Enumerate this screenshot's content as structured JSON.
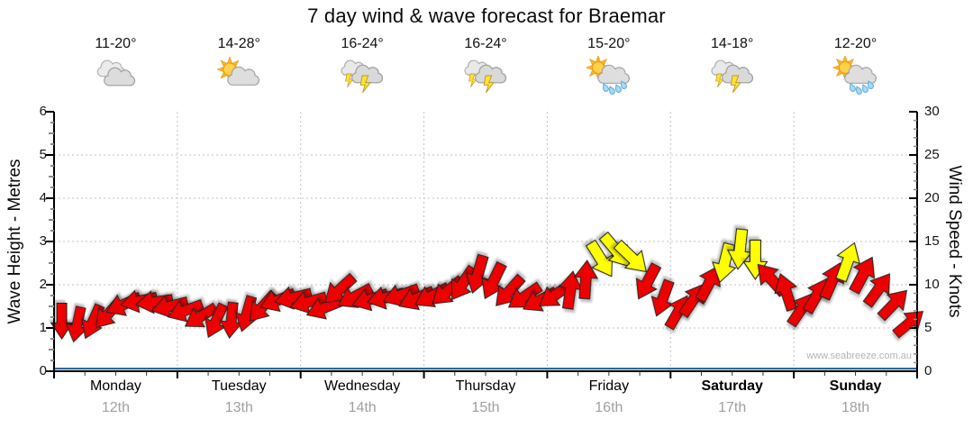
{
  "title": "7 day wind & wave forecast for Braemar",
  "watermark": "www.seabreeze.com.au",
  "colors": {
    "arrow_red": "#ee0000",
    "arrow_yellow": "#ffff00",
    "arrow_outline": "#222222",
    "wave_line": "#1d5e8f",
    "grid": "#c3c3c3",
    "axis": "#000000",
    "minor_tick": "#8a8a8a",
    "date_text": "#a0a0a0",
    "watermark_text": "#b4b4b4"
  },
  "day_headers": [
    {
      "temp": "11-20°",
      "icon": "cloudy"
    },
    {
      "temp": "14-28°",
      "icon": "partly-cloudy"
    },
    {
      "temp": "16-24°",
      "icon": "thunderstorm"
    },
    {
      "temp": "16-24°",
      "icon": "thunderstorm"
    },
    {
      "temp": "15-20°",
      "icon": "sun-showers"
    },
    {
      "temp": "14-18°",
      "icon": "thunderstorm"
    },
    {
      "temp": "12-20°",
      "icon": "sun-showers"
    }
  ],
  "chart_data": {
    "type": "scatter",
    "subtype": "wind-direction-arrows",
    "title": "7 day wind & wave forecast for Braemar",
    "legend": "none",
    "x_axis": {
      "days": [
        {
          "name": "Monday",
          "date": "12th",
          "bold": false
        },
        {
          "name": "Tuesday",
          "date": "13th",
          "bold": false
        },
        {
          "name": "Wednesday",
          "date": "14th",
          "bold": false
        },
        {
          "name": "Thursday",
          "date": "15th",
          "bold": false
        },
        {
          "name": "Friday",
          "date": "16th",
          "bold": false
        },
        {
          "name": "Saturday",
          "date": "17th",
          "bold": true
        },
        {
          "name": "Sunday",
          "date": "18th",
          "bold": true
        }
      ],
      "minor_ticks_hours": 6
    },
    "y_left": {
      "label": "Wave Height - Metres",
      "range": [
        0,
        6
      ],
      "ticks": [
        0,
        1,
        2,
        3,
        4,
        5,
        6
      ]
    },
    "y_right": {
      "label": "Wind Speed - Knots",
      "range": [
        0,
        30
      ],
      "ticks": [
        0,
        5,
        10,
        15,
        20,
        25,
        30
      ]
    },
    "grid": {
      "horizontal": "dotted line every 1 m / 5 kn",
      "vertical": "dotted line at each day boundary"
    },
    "wave_height_m": {
      "description": "flat wave-height line near zero for the whole week",
      "value": 0.06
    },
    "wind_points_columns": [
      "day_index",
      "hour",
      "knots",
      "dir_deg_cw_from_up",
      "color(r=red,y=yellow)"
    ],
    "wind_points": [
      [
        0,
        1.5,
        5.8,
        180,
        "r"
      ],
      [
        0,
        4.5,
        5.4,
        192,
        "r"
      ],
      [
        0,
        7.5,
        5.7,
        204,
        "r"
      ],
      [
        0,
        10.5,
        6.6,
        222,
        "r"
      ],
      [
        0,
        13.5,
        7.7,
        246,
        "r"
      ],
      [
        0,
        16.5,
        8.1,
        258,
        "r"
      ],
      [
        0,
        19.5,
        8.0,
        262,
        "r"
      ],
      [
        0,
        22.5,
        7.5,
        256,
        "r"
      ],
      [
        1,
        1.5,
        7.0,
        250,
        "r"
      ],
      [
        1,
        4.5,
        6.3,
        238,
        "r"
      ],
      [
        1,
        7.5,
        5.8,
        205,
        "r"
      ],
      [
        1,
        10.5,
        5.9,
        186,
        "r"
      ],
      [
        1,
        13.5,
        6.6,
        196,
        "r"
      ],
      [
        1,
        16.5,
        7.4,
        222,
        "r"
      ],
      [
        1,
        19.5,
        8.2,
        248,
        "r"
      ],
      [
        1,
        22.5,
        8.5,
        257,
        "r"
      ],
      [
        2,
        1.5,
        8.0,
        254,
        "r"
      ],
      [
        2,
        4.5,
        7.3,
        248,
        "r"
      ],
      [
        2,
        7.5,
        9.4,
        228,
        "r"
      ],
      [
        2,
        10.5,
        8.6,
        242,
        "r"
      ],
      [
        2,
        13.5,
        8.3,
        252,
        "r"
      ],
      [
        2,
        16.5,
        8.5,
        256,
        "r"
      ],
      [
        2,
        19.5,
        8.8,
        250,
        "r"
      ],
      [
        2,
        22.5,
        8.4,
        246,
        "r"
      ],
      [
        3,
        1.5,
        8.7,
        242,
        "r"
      ],
      [
        3,
        4.5,
        9.2,
        230,
        "r"
      ],
      [
        3,
        7.5,
        10.1,
        214,
        "r"
      ],
      [
        3,
        10.5,
        11.2,
        196,
        "r"
      ],
      [
        3,
        13.5,
        10.4,
        206,
        "r"
      ],
      [
        3,
        16.5,
        9.2,
        222,
        "r"
      ],
      [
        3,
        19.5,
        8.6,
        236,
        "r"
      ],
      [
        3,
        22.5,
        8.2,
        242,
        "r"
      ],
      [
        4,
        1.5,
        8.8,
        235,
        "r"
      ],
      [
        4,
        4.5,
        9.4,
        8,
        "r"
      ],
      [
        4,
        7.5,
        10.6,
        4,
        "r"
      ],
      [
        4,
        10.5,
        12.9,
        148,
        "y"
      ],
      [
        4,
        13.5,
        13.9,
        140,
        "y"
      ],
      [
        4,
        16.5,
        13.1,
        134,
        "y"
      ],
      [
        4,
        19.5,
        10.3,
        208,
        "r"
      ],
      [
        4,
        22.5,
        8.4,
        200,
        "r"
      ],
      [
        5,
        1.5,
        6.9,
        30,
        "r"
      ],
      [
        5,
        4.5,
        8.3,
        34,
        "r"
      ],
      [
        5,
        7.5,
        10.2,
        28,
        "r"
      ],
      [
        5,
        10.5,
        12.5,
        194,
        "y"
      ],
      [
        5,
        13.5,
        14.1,
        186,
        "y"
      ],
      [
        5,
        16.5,
        12.9,
        180,
        "y"
      ],
      [
        5,
        19.5,
        10.7,
        318,
        "r"
      ],
      [
        5,
        22.5,
        9.2,
        342,
        "r"
      ],
      [
        6,
        1.5,
        7.2,
        34,
        "r"
      ],
      [
        6,
        4.5,
        8.8,
        30,
        "r"
      ],
      [
        6,
        7.5,
        10.5,
        24,
        "r"
      ],
      [
        6,
        10.5,
        12.7,
        20,
        "y"
      ],
      [
        6,
        13.5,
        11.2,
        28,
        "r"
      ],
      [
        6,
        16.5,
        9.5,
        36,
        "r"
      ],
      [
        6,
        19.5,
        7.8,
        44,
        "r"
      ],
      [
        6,
        22.5,
        5.6,
        50,
        "r"
      ]
    ]
  }
}
